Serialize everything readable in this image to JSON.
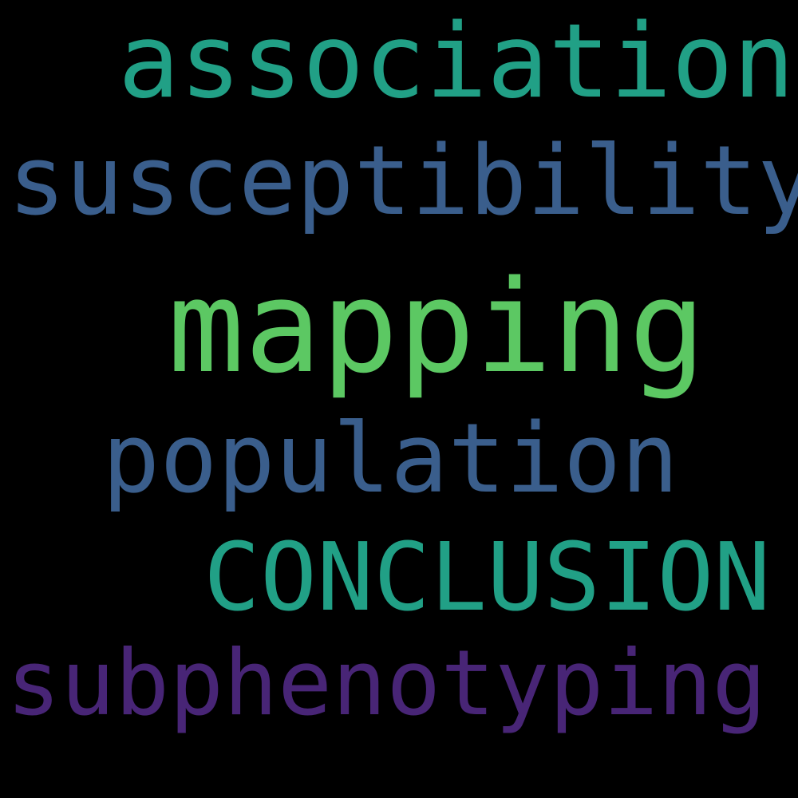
{
  "word_cloud": {
    "background_color": "#000000",
    "words": [
      {
        "text": "association",
        "color": "#21a086"
      },
      {
        "text": "susceptibility",
        "color": "#3a5e8c"
      },
      {
        "text": "mapping",
        "color": "#5cc863"
      },
      {
        "text": "population",
        "color": "#3a5e8c"
      },
      {
        "text": "CONCLUSION",
        "color": "#21a086"
      },
      {
        "text": "subphenotyping",
        "color": "#482576"
      }
    ]
  }
}
